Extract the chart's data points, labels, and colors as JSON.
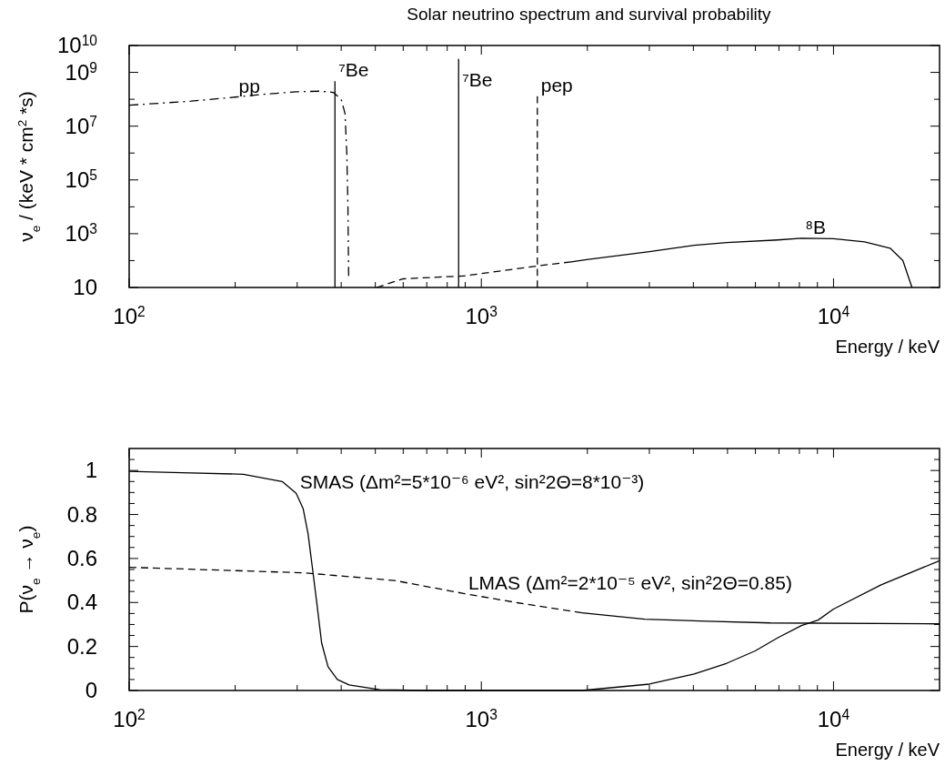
{
  "chart_data": [
    {
      "type": "line",
      "title": "Solar neutrino spectrum and survival probability",
      "xlabel": "Energy / keV",
      "ylabel": "ν$_{e}$ / (keV * cm$^{2}$ *s)",
      "log": "xy",
      "xlim": [
        100,
        20000
      ],
      "ylim": [
        10,
        10000000000
      ],
      "xticks": [
        {
          "value": 100,
          "label": "10$^{2}$"
        },
        {
          "value": 200,
          "label": null
        },
        {
          "value": 300,
          "label": null
        },
        {
          "value": 400,
          "label": null
        },
        {
          "value": 500,
          "label": null
        },
        {
          "value": 600,
          "label": null
        },
        {
          "value": 700,
          "label": null
        },
        {
          "value": 800,
          "label": null
        },
        {
          "value": 900,
          "label": null
        },
        {
          "value": 1000,
          "label": "10$^{3}$"
        },
        {
          "value": 2000,
          "label": null
        },
        {
          "value": 3000,
          "label": null
        },
        {
          "value": 4000,
          "label": null
        },
        {
          "value": 5000,
          "label": null
        },
        {
          "value": 6000,
          "label": null
        },
        {
          "value": 7000,
          "label": null
        },
        {
          "value": 8000,
          "label": null
        },
        {
          "value": 9000,
          "label": null
        },
        {
          "value": 10000,
          "label": "10$^{4}$"
        }
      ],
      "yticks": [
        10,
        {
          "value": 100,
          "label": null
        },
        {
          "value": 1000,
          "label": "10$^{3}$"
        },
        {
          "value": 10000,
          "label": null
        },
        {
          "value": 100000,
          "label": "10$^{5}$"
        },
        {
          "value": 1000000,
          "label": null
        },
        {
          "value": 10000000,
          "label": "10$^{7}$"
        },
        {
          "value": 100000000,
          "label": null
        },
        {
          "value": 1000000000,
          "label": "10$^{9}$"
        },
        {
          "value": 10000000000,
          "label": "10$^{10}$"
        }
      ],
      "series": [
        {
          "color": "#000000",
          "line_style": "dashdot",
          "x": [
            100,
            150,
            200,
            250,
            300,
            350,
            380,
            400,
            410,
            415,
            418,
            420
          ],
          "values": [
            60000000,
            85000000,
            120000000,
            160000000,
            190000000,
            200000000,
            180000000,
            100000000,
            30000000,
            1000000,
            10000,
            27
          ]
        },
        {
          "color": "#000000",
          "line_style": "solid",
          "x": [
            384,
            384
          ],
          "values": [
            10,
            470000000
          ]
        },
        {
          "color": "#000000",
          "line_style": "solid",
          "x": [
            862,
            862
          ],
          "values": [
            10,
            3200000000
          ]
        },
        {
          "color": "#000000",
          "line_style": "dashed",
          "x": [
            1442,
            1442
          ],
          "values": [
            10,
            130000000
          ]
        },
        {
          "color": "#000000",
          "line_style": "dashed",
          "x": [
            504,
            600,
            897,
            1440,
            1800
          ],
          "values": [
            10,
            21,
            27,
            63,
            90
          ]
        },
        {
          "color": "#000000",
          "line_style": "solid",
          "x": [
            1800,
            1990,
            3000,
            4020,
            4980,
            6950,
            8110,
            10000,
            12250,
            14480,
            15740,
            16700
          ],
          "values": [
            90,
            108,
            215,
            370,
            465,
            585,
            680,
            650,
            500,
            290,
            100,
            10
          ]
        }
      ],
      "annotations": [
        {
          "text": "pp",
          "x": 200,
          "y": 120000000
        },
        {
          "text": "⁷Be",
          "x": 384,
          "y": 470000000
        },
        {
          "text": "⁷Be",
          "x": 862,
          "y": 200000000
        },
        {
          "text": "pep",
          "x": 1442,
          "y": 130000000
        },
        {
          "text": "⁸B",
          "x": 8110,
          "y": 680
        }
      ]
    },
    {
      "type": "line",
      "xlabel": "Energy / keV",
      "ylabel": "P(ν$_{e}$ → ν$_{e}$)",
      "log": "x",
      "xlim": [
        100,
        20000
      ],
      "ylim": [
        0,
        1.1
      ],
      "xticks": [
        {
          "value": 100,
          "label": "10$^{2}$"
        },
        {
          "value": 200,
          "label": null
        },
        {
          "value": 300,
          "label": null
        },
        {
          "value": 400,
          "label": null
        },
        {
          "value": 500,
          "label": null
        },
        {
          "value": 600,
          "label": null
        },
        {
          "value": 700,
          "label": null
        },
        {
          "value": 800,
          "label": null
        },
        {
          "value": 900,
          "label": null
        },
        {
          "value": 1000,
          "label": "10$^{3}$"
        },
        {
          "value": 2000,
          "label": null
        },
        {
          "value": 3000,
          "label": null
        },
        {
          "value": 4000,
          "label": null
        },
        {
          "value": 5000,
          "label": null
        },
        {
          "value": 6000,
          "label": null
        },
        {
          "value": 7000,
          "label": null
        },
        {
          "value": 8000,
          "label": null
        },
        {
          "value": 9000,
          "label": null
        },
        {
          "value": 10000,
          "label": "10$^{4}$"
        }
      ],
      "yticks": [
        0,
        {
          "value": 0.05,
          "label": null
        },
        {
          "value": 0.1,
          "label": null
        },
        {
          "value": 0.15,
          "label": null
        },
        0.2,
        {
          "value": 0.25,
          "label": null
        },
        {
          "value": 0.3,
          "label": null
        },
        {
          "value": 0.35,
          "label": null
        },
        0.4,
        {
          "value": 0.45,
          "label": null
        },
        {
          "value": 0.5,
          "label": null
        },
        {
          "value": 0.55,
          "label": null
        },
        0.6,
        {
          "value": 0.65,
          "label": null
        },
        {
          "value": 0.7,
          "label": null
        },
        {
          "value": 0.75,
          "label": null
        },
        0.8,
        {
          "value": 0.85,
          "label": null
        },
        {
          "value": 0.9,
          "label": null
        },
        {
          "value": 0.95,
          "label": null
        },
        1,
        {
          "value": 1.05,
          "label": null
        }
      ],
      "series": [
        {
          "color": "#000000",
          "line_style": "solid",
          "x": [
            100,
            141,
            211,
            272,
            298,
            312,
            322,
            332,
            342,
            352,
            367,
            390,
            421,
            515,
            695,
            1930,
            3000,
            4020,
            4980,
            5990,
            6950,
            8110,
            9040,
            10000,
            13650,
            20000
          ],
          "values": [
            0.996,
            0.99,
            0.983,
            0.95,
            0.896,
            0.826,
            0.714,
            0.548,
            0.382,
            0.216,
            0.108,
            0.05,
            0.025,
            0.004,
            0,
            0,
            0.029,
            0.075,
            0.124,
            0.18,
            0.24,
            0.295,
            0.32,
            0.37,
            0.48,
            0.59
          ]
        },
        {
          "color": "#000000",
          "line_style": "dashed",
          "x": [
            100,
            312,
            567,
            897,
            1276,
            1930
          ],
          "values": [
            0.56,
            0.535,
            0.5,
            0.44,
            0.398,
            0.353
          ]
        },
        {
          "color": "#000000",
          "line_style": "solid",
          "x": [
            1930,
            2910,
            4390,
            6620,
            20000
          ],
          "values": [
            0.353,
            0.324,
            0.315,
            0.307,
            0.303
          ]
        }
      ],
      "annotations": [
        {
          "text": "SMAS (Δm²=5*10⁻⁶ eV², sin²2Θ=8*10⁻³)",
          "x": 298,
          "y": 0.896
        },
        {
          "text": "LMAS (Δm²=2*10⁻⁵ eV², sin²2Θ=0.85)",
          "x": 897,
          "y": 0.44
        }
      ]
    }
  ]
}
